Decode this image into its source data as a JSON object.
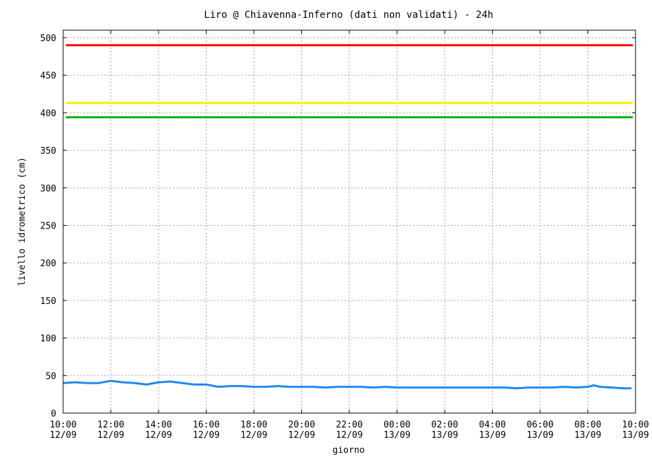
{
  "chart_data": {
    "type": "line",
    "title": "Liro @ Chiavenna-Inferno (dati non validati) - 24h",
    "xlabel": "giorno",
    "ylabel": "livello idrometrico (cm)",
    "ylim": [
      0,
      510
    ],
    "xlim": [
      "12/09 10:00",
      "13/09 10:00"
    ],
    "grid": true,
    "y_ticks": [
      0,
      50,
      100,
      150,
      200,
      250,
      300,
      350,
      400,
      450,
      500
    ],
    "x_ticks": [
      {
        "time": "10:00",
        "date": "12/09"
      },
      {
        "time": "12:00",
        "date": "12/09"
      },
      {
        "time": "14:00",
        "date": "12/09"
      },
      {
        "time": "16:00",
        "date": "12/09"
      },
      {
        "time": "18:00",
        "date": "12/09"
      },
      {
        "time": "20:00",
        "date": "12/09"
      },
      {
        "time": "22:00",
        "date": "12/09"
      },
      {
        "time": "00:00",
        "date": "13/09"
      },
      {
        "time": "02:00",
        "date": "13/09"
      },
      {
        "time": "04:00",
        "date": "13/09"
      },
      {
        "time": "06:00",
        "date": "13/09"
      },
      {
        "time": "08:00",
        "date": "13/09"
      },
      {
        "time": "10:00",
        "date": "13/09"
      }
    ],
    "thresholds": [
      {
        "value": 490,
        "color": "#ff0000"
      },
      {
        "value": 413,
        "color": "#ffee00"
      },
      {
        "value": 394,
        "color": "#00b000"
      }
    ],
    "series": [
      {
        "color": "#1e88ee",
        "x": [
          "12/09 10:00",
          "12/09 10:30",
          "12/09 11:00",
          "12/09 11:30",
          "12/09 12:00",
          "12/09 12:30",
          "12/09 13:00",
          "12/09 13:30",
          "12/09 14:00",
          "12/09 14:30",
          "12/09 15:00",
          "12/09 15:30",
          "12/09 16:00",
          "12/09 16:30",
          "12/09 17:00",
          "12/09 17:30",
          "12/09 18:00",
          "12/09 18:30",
          "12/09 19:00",
          "12/09 19:30",
          "12/09 20:00",
          "12/09 20:30",
          "12/09 21:00",
          "12/09 21:30",
          "12/09 22:00",
          "12/09 22:30",
          "12/09 23:00",
          "12/09 23:30",
          "13/09 00:00",
          "13/09 00:30",
          "13/09 01:00",
          "13/09 01:30",
          "13/09 02:00",
          "13/09 02:30",
          "13/09 03:00",
          "13/09 03:30",
          "13/09 04:00",
          "13/09 04:30",
          "13/09 05:00",
          "13/09 05:30",
          "13/09 06:00",
          "13/09 06:30",
          "13/09 07:00",
          "13/09 07:30",
          "13/09 08:00",
          "13/09 08:15",
          "13/09 08:30",
          "13/09 09:00",
          "13/09 09:30",
          "13/09 09:50"
        ],
        "values": [
          40,
          41,
          40,
          40,
          43,
          41,
          40,
          38,
          41,
          42,
          40,
          38,
          38,
          35,
          36,
          36,
          35,
          35,
          36,
          35,
          35,
          35,
          34,
          35,
          35,
          35,
          34,
          35,
          34,
          34,
          34,
          34,
          34,
          34,
          34,
          34,
          34,
          34,
          33,
          34,
          34,
          34,
          35,
          34,
          35,
          37,
          35,
          34,
          33,
          33
        ]
      }
    ]
  }
}
